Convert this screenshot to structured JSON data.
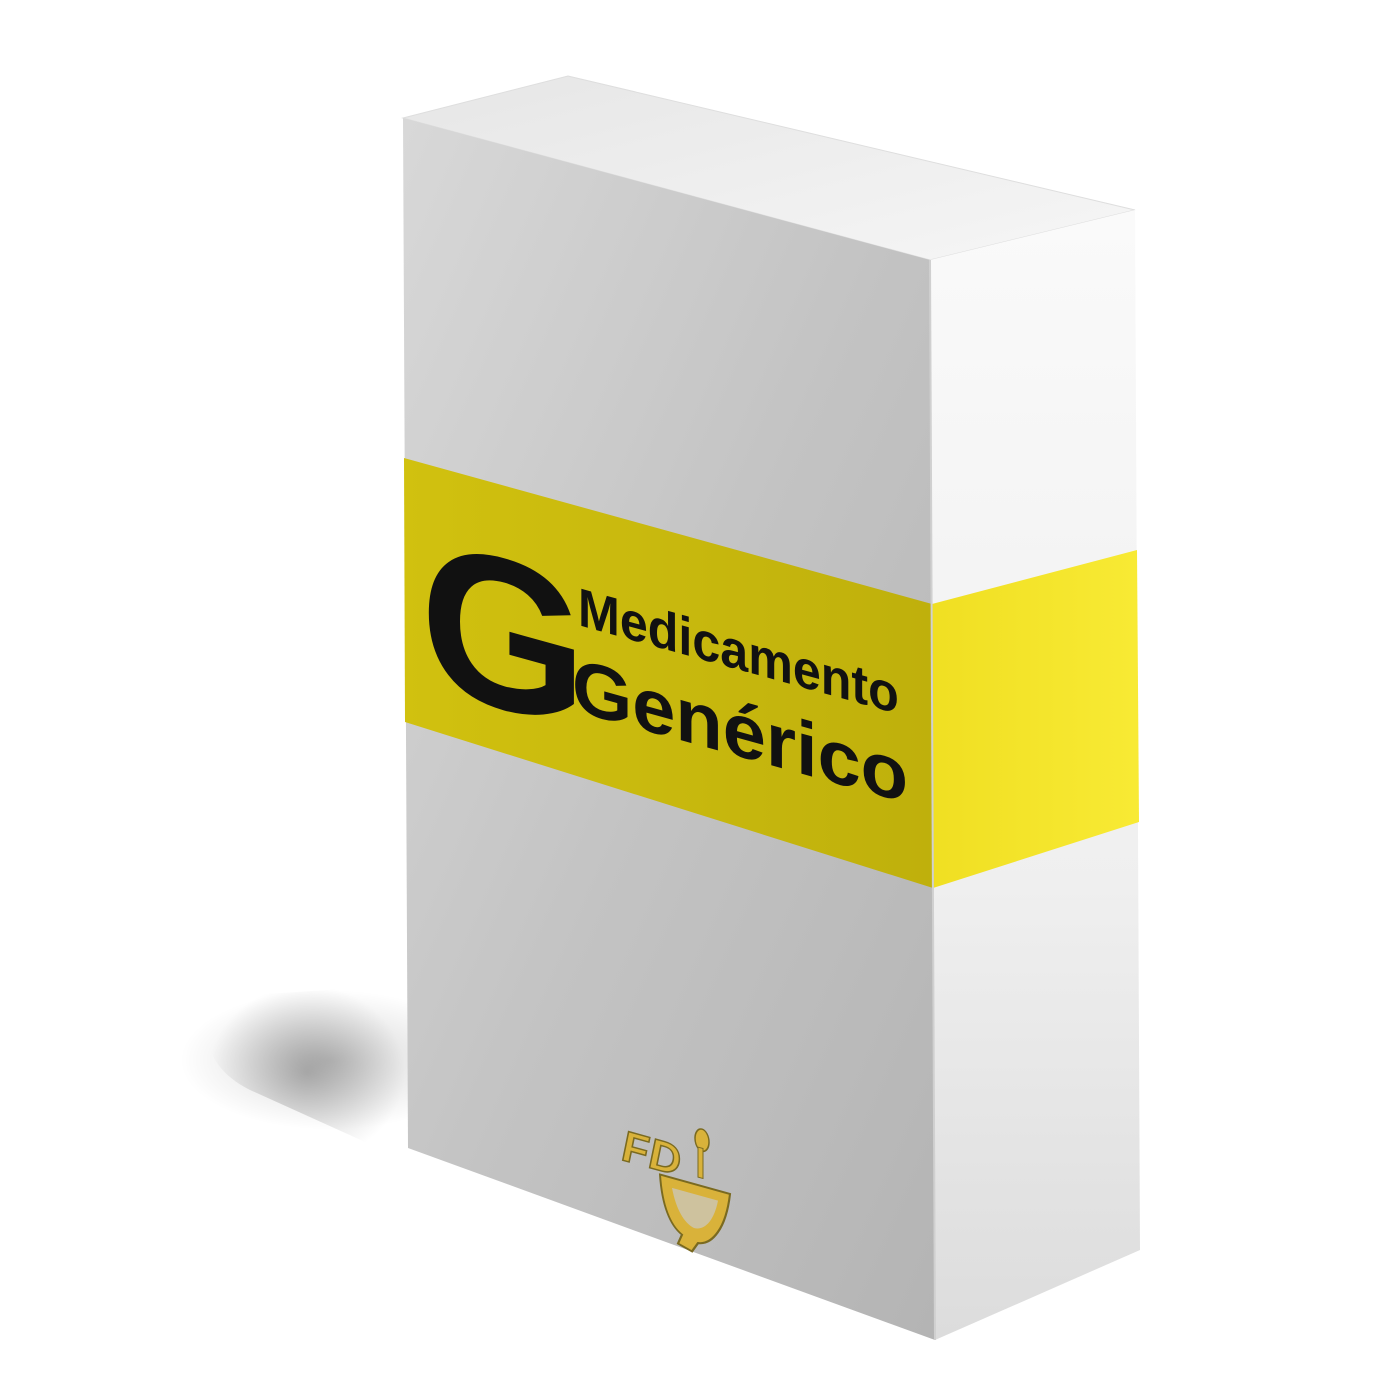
{
  "product": {
    "badge_letter": "G",
    "label_line1": "Medicamento",
    "label_line2": "Genérico",
    "logo_text": "FD"
  },
  "colors": {
    "background": "#ffffff",
    "band_front": "#c7b80e",
    "band_side": "#f4e52a",
    "box_front": "#c4c4c4",
    "box_side": "#f2f2f2",
    "box_top": "#ececec",
    "text": "#111111",
    "logo": "#d9b23a"
  }
}
